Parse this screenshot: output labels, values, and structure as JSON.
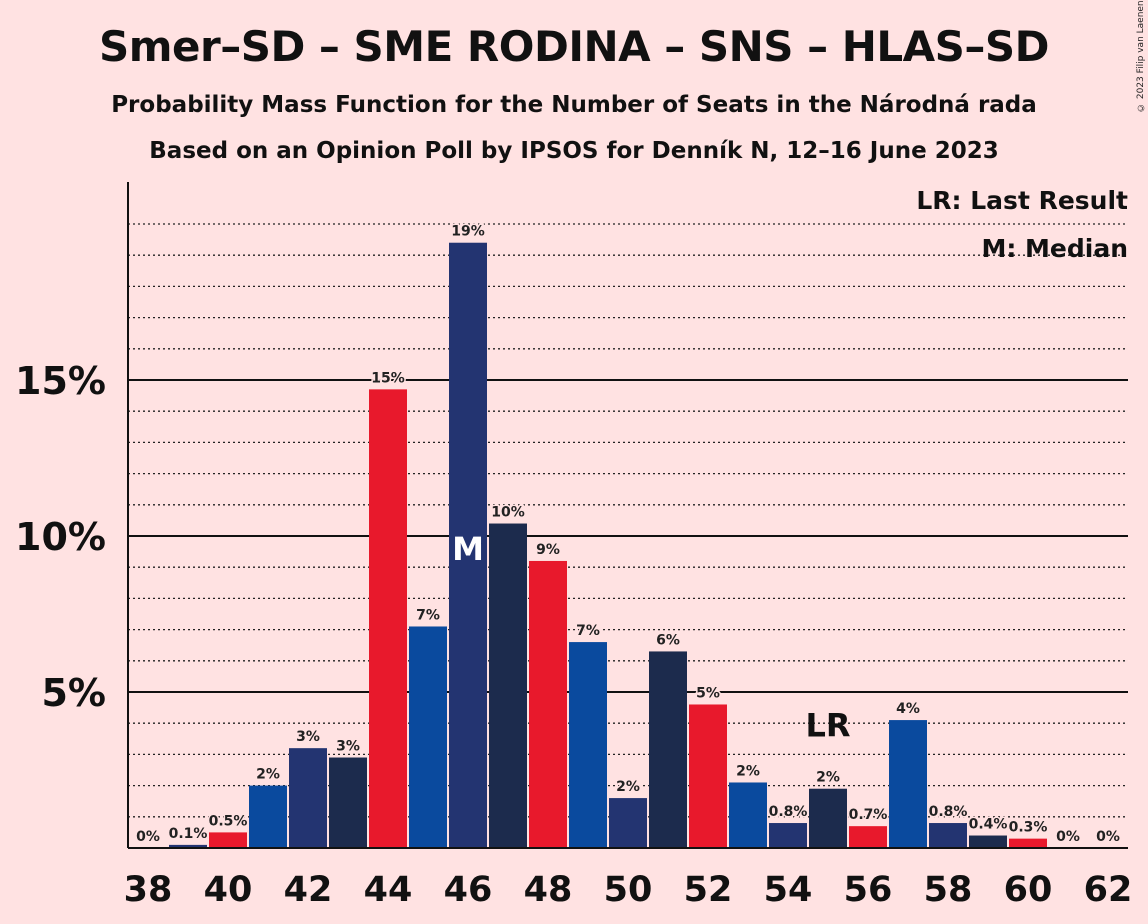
{
  "header": {
    "title": "Smer–SD – SME RODINA – SNS – HLAS–SD",
    "subtitle1": "Probability Mass Function for the Number of Seats in the Národná rada",
    "subtitle2": "Based on an Opinion Poll by IPSOS for Denník N, 12–16 June 2023",
    "copyright": "© 2023 Filip van Laenen"
  },
  "legend": {
    "last_result": "LR: Last Result",
    "median": "M: Median"
  },
  "colors": {
    "background": "#FFE2E2",
    "red": "#E8192C",
    "blue": "#0A4A9E",
    "navy": "#233471",
    "dark": "#1C2B4D"
  },
  "chart_data": {
    "type": "bar",
    "x": [
      38,
      39,
      40,
      41,
      42,
      43,
      44,
      45,
      46,
      47,
      48,
      49,
      50,
      51,
      52,
      53,
      54,
      55,
      56,
      57,
      58,
      59,
      60,
      61,
      62
    ],
    "values": [
      0,
      0.1,
      0.5,
      2.0,
      3.2,
      2.9,
      14.7,
      7.1,
      19.4,
      10.4,
      9.2,
      6.6,
      1.6,
      6.3,
      4.6,
      2.1,
      0.8,
      1.9,
      0.7,
      4.1,
      0.8,
      0.4,
      0.3,
      0,
      0
    ],
    "labels": [
      "0%",
      "0.1%",
      "0.5%",
      "2%",
      "3%",
      "3%",
      "15%",
      "7%",
      "19%",
      "10%",
      "9%",
      "7%",
      "2%",
      "6%",
      "5%",
      "2%",
      "0.8%",
      "2%",
      "0.7%",
      "4%",
      "0.8%",
      "0.4%",
      "0.3%",
      "0%",
      "0%"
    ],
    "bar_colors": [
      "red",
      "navy",
      "red",
      "blue",
      "navy",
      "dark",
      "red",
      "blue",
      "navy",
      "dark",
      "red",
      "blue",
      "navy",
      "dark",
      "red",
      "blue",
      "navy",
      "dark",
      "red",
      "blue",
      "navy",
      "dark",
      "red",
      "blue",
      "navy"
    ],
    "x_tick_labels": [
      "38",
      "40",
      "42",
      "44",
      "46",
      "48",
      "50",
      "52",
      "54",
      "56",
      "58",
      "60",
      "62"
    ],
    "y_ticks": [
      5,
      10,
      15
    ],
    "y_tick_labels": [
      "5%",
      "10%",
      "15%"
    ],
    "ylim": [
      0,
      21
    ],
    "median_seat": 46,
    "median_marker": "M",
    "last_result_seat": 55,
    "last_result_marker": "LR",
    "grid": true,
    "legend_position": "top-right"
  }
}
